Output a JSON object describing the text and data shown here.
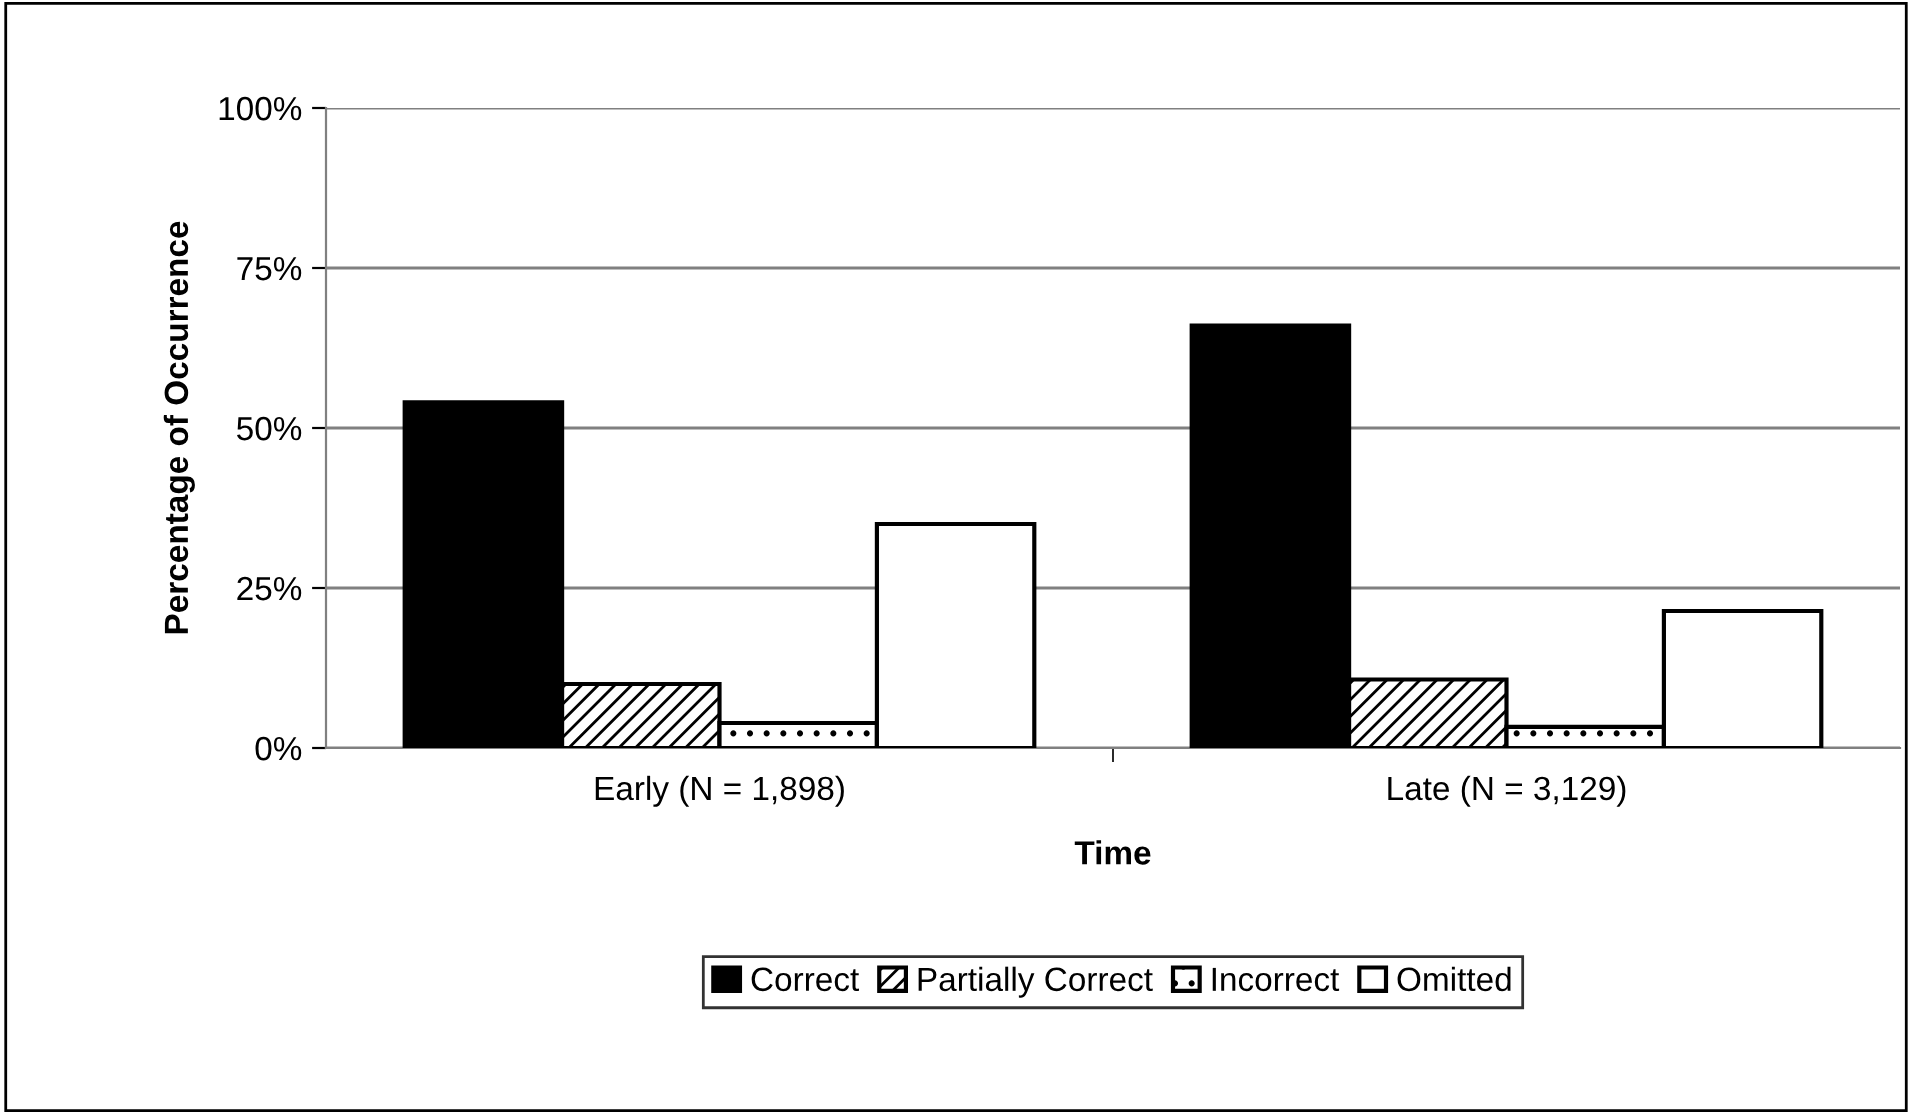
{
  "chart_data": {
    "type": "bar",
    "xlabel": "Time",
    "ylabel": "Percentage of Occurrence",
    "categories": [
      "Early (N = 1,898)",
      "Late (N = 3,129)"
    ],
    "series": [
      {
        "name": "Correct",
        "color": "#000000",
        "values": [
          54,
          66
        ]
      },
      {
        "name": "Partially Correct",
        "color": "#000000",
        "values": [
          10,
          10.7
        ]
      },
      {
        "name": "Incorrect",
        "color": "#000000",
        "values": [
          3.9,
          3.3
        ]
      },
      {
        "name": "Omitted",
        "color": "#ffffff",
        "values": [
          35,
          21.4
        ]
      }
    ],
    "ylim": [
      0,
      100
    ],
    "yticks": [
      {
        "value": 0,
        "label": "0%"
      },
      {
        "value": 25,
        "label": "25%"
      },
      {
        "value": 50,
        "label": "50%"
      },
      {
        "value": 75,
        "label": "75%"
      },
      {
        "value": 100,
        "label": "100%"
      }
    ],
    "grid": "y",
    "legend": "bottom"
  }
}
